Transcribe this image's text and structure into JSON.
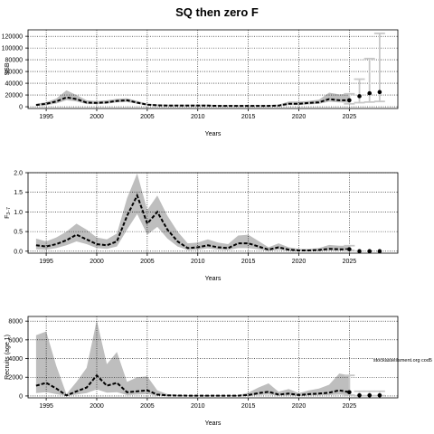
{
  "figure": {
    "title": "SQ then zero F",
    "footnote": "stockassessment.org cod5"
  },
  "colors": {
    "band": "#bebebe",
    "forecast_bar": "#c8c8c8",
    "line": "#000000"
  },
  "chart_data": [
    {
      "type": "line",
      "id": "ssb",
      "title": "",
      "xlabel": "Years",
      "ylabel": "SSB",
      "xlim": [
        1993.2,
        2029.8
      ],
      "ylim": [
        -3000,
        131000
      ],
      "xticks": [
        1995,
        2000,
        2005,
        2010,
        2015,
        2020,
        2025
      ],
      "yticks": [
        0,
        20000,
        40000,
        60000,
        80000,
        100000,
        120000
      ],
      "ytick_labels": [
        "0",
        "20000",
        "40000",
        "60000",
        "80000",
        "100000",
        "120000"
      ],
      "grid": true,
      "x": [
        1994,
        1995,
        1996,
        1997,
        1998,
        1999,
        2000,
        2001,
        2002,
        2003,
        2004,
        2005,
        2006,
        2007,
        2008,
        2009,
        2010,
        2011,
        2012,
        2013,
        2014,
        2015,
        2016,
        2017,
        2018,
        2019,
        2020,
        2021,
        2022,
        2023,
        2024,
        2025
      ],
      "estimate": [
        3000,
        5000,
        9000,
        16000,
        13000,
        7000,
        6500,
        7500,
        10000,
        11000,
        7000,
        3500,
        2500,
        2000,
        2000,
        2000,
        2000,
        2000,
        1500,
        1500,
        1500,
        1500,
        1500,
        1500,
        2000,
        5000,
        5000,
        6500,
        7500,
        13000,
        11000,
        11000
      ],
      "lower": [
        1500,
        2500,
        5500,
        11000,
        9000,
        4500,
        4500,
        5000,
        7500,
        8000,
        5000,
        2500,
        1500,
        1200,
        1200,
        1200,
        1200,
        1200,
        1000,
        1000,
        1000,
        1000,
        1000,
        1000,
        1200,
        3000,
        3000,
        4000,
        5000,
        8500,
        7500,
        7000
      ],
      "upper": [
        5000,
        8000,
        14000,
        28000,
        20000,
        11000,
        9500,
        11000,
        13500,
        14500,
        10000,
        5500,
        4000,
        3500,
        3500,
        3500,
        3500,
        3500,
        3000,
        3000,
        3000,
        3000,
        3000,
        3000,
        3500,
        9000,
        9000,
        10000,
        12000,
        24000,
        21000,
        22000
      ],
      "forecast": {
        "x": [
          2025,
          2026,
          2027,
          2028
        ],
        "median": [
          11000,
          18000,
          23000,
          25000
        ],
        "low": [
          5000,
          7000,
          8000,
          9000
        ],
        "high": [
          22000,
          47000,
          82000,
          125000
        ]
      }
    },
    {
      "type": "line",
      "id": "fbar",
      "title": "",
      "xlabel": "Years",
      "ylabel": "F3-7",
      "ylabel_main": "F",
      "ylabel_sub": "3−7",
      "xlim": [
        1993.2,
        2029.8
      ],
      "ylim": [
        -0.05,
        2.0
      ],
      "xticks": [
        1995,
        2000,
        2005,
        2010,
        2015,
        2020,
        2025
      ],
      "yticks": [
        0.0,
        0.5,
        1.0,
        1.5,
        2.0
      ],
      "ytick_labels": [
        "0.0",
        "0.5",
        "1.0",
        "1.5",
        "2.0"
      ],
      "grid": true,
      "x": [
        1994,
        1995,
        1996,
        1997,
        1998,
        1999,
        2000,
        2001,
        2002,
        2003,
        2004,
        2005,
        2006,
        2007,
        2008,
        2009,
        2010,
        2011,
        2012,
        2013,
        2014,
        2015,
        2016,
        2017,
        2018,
        2019,
        2020,
        2021,
        2022,
        2023,
        2024,
        2025
      ],
      "estimate": [
        0.15,
        0.12,
        0.18,
        0.28,
        0.42,
        0.3,
        0.18,
        0.15,
        0.25,
        0.9,
        1.42,
        0.7,
        1.0,
        0.55,
        0.25,
        0.08,
        0.1,
        0.15,
        0.1,
        0.08,
        0.2,
        0.2,
        0.12,
        0.04,
        0.1,
        0.04,
        0.02,
        0.02,
        0.03,
        0.06,
        0.05,
        0.05
      ],
      "lower": [
        0.05,
        0.04,
        0.08,
        0.15,
        0.25,
        0.18,
        0.08,
        0.06,
        0.12,
        0.55,
        0.95,
        0.42,
        0.62,
        0.32,
        0.12,
        0.03,
        0.04,
        0.07,
        0.04,
        0.03,
        0.08,
        0.08,
        0.05,
        0.01,
        0.04,
        0.01,
        0.0,
        0.0,
        0.01,
        0.02,
        0.02,
        0.02
      ],
      "upper": [
        0.32,
        0.25,
        0.35,
        0.5,
        0.7,
        0.55,
        0.35,
        0.3,
        0.45,
        1.35,
        1.98,
        1.05,
        1.42,
        0.9,
        0.5,
        0.2,
        0.22,
        0.3,
        0.22,
        0.18,
        0.4,
        0.42,
        0.26,
        0.1,
        0.2,
        0.1,
        0.06,
        0.06,
        0.08,
        0.16,
        0.14,
        0.14
      ],
      "forecast": {
        "x": [
          2025,
          2026,
          2027,
          2028
        ],
        "median": [
          0.05,
          0.0,
          0.0,
          0.0
        ],
        "low": [
          0.02,
          0.0,
          0.0,
          0.0
        ],
        "high": [
          0.14,
          0.0,
          0.0,
          0.0
        ]
      }
    },
    {
      "type": "line",
      "id": "recruits",
      "title": "",
      "xlabel": "Years",
      "ylabel": "Recruits (age 1)",
      "xlim": [
        1993.2,
        2029.8
      ],
      "ylim": [
        -200,
        8500
      ],
      "xticks": [
        1995,
        2000,
        2005,
        2010,
        2015,
        2020,
        2025
      ],
      "yticks": [
        0,
        2000,
        4000,
        6000,
        8000
      ],
      "ytick_labels": [
        "0",
        "2000",
        "4000",
        "6000",
        "8000"
      ],
      "grid": true,
      "x": [
        1994,
        1995,
        1996,
        1997,
        1998,
        1999,
        2000,
        2001,
        2002,
        2003,
        2004,
        2005,
        2006,
        2007,
        2008,
        2009,
        2010,
        2011,
        2012,
        2013,
        2014,
        2015,
        2016,
        2017,
        2018,
        2019,
        2020,
        2021,
        2022,
        2023,
        2024,
        2025
      ],
      "estimate": [
        1100,
        1400,
        800,
        50,
        500,
        900,
        2200,
        1100,
        1400,
        400,
        500,
        600,
        150,
        60,
        40,
        30,
        30,
        30,
        30,
        30,
        30,
        100,
        300,
        450,
        150,
        250,
        100,
        200,
        250,
        350,
        600,
        400
      ],
      "lower": [
        300,
        400,
        200,
        10,
        150,
        300,
        700,
        350,
        400,
        100,
        150,
        200,
        40,
        15,
        10,
        8,
        8,
        8,
        8,
        8,
        8,
        30,
        100,
        150,
        40,
        70,
        30,
        60,
        80,
        100,
        150,
        100
      ],
      "upper": [
        6500,
        6900,
        3200,
        200,
        1500,
        3000,
        8100,
        3400,
        4700,
        1500,
        2000,
        2100,
        600,
        200,
        120,
        90,
        90,
        90,
        90,
        90,
        90,
        350,
        900,
        1350,
        450,
        750,
        300,
        600,
        800,
        1200,
        2400,
        2200
      ],
      "forecast": {
        "x": [
          2025,
          2026,
          2027,
          2028
        ],
        "median": [
          400,
          60,
          60,
          60
        ],
        "low": [
          100,
          30,
          30,
          30
        ],
        "high": [
          2200,
          500,
          500,
          500
        ]
      }
    }
  ]
}
